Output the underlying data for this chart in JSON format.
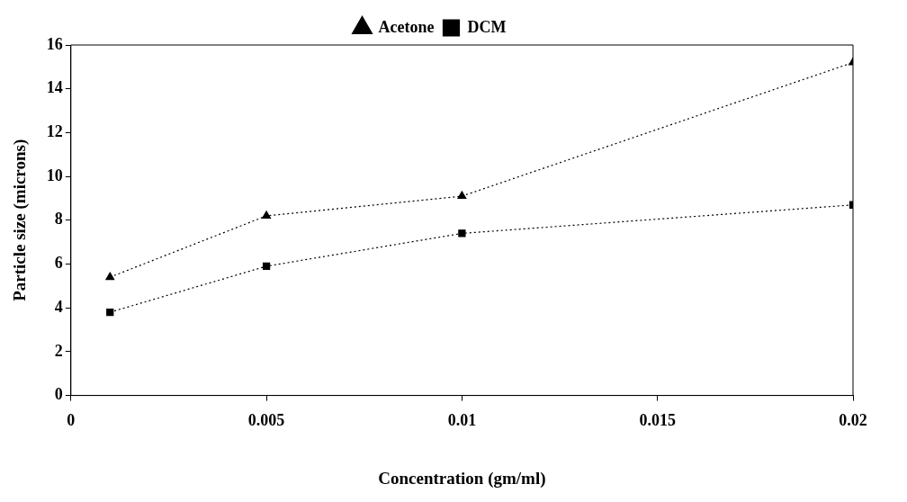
{
  "chart_data": {
    "type": "line",
    "xlabel": "Concentration (gm/ml)",
    "ylabel": "Particle size (microns)",
    "x": [
      0.001,
      0.005,
      0.01,
      0.02
    ],
    "series": [
      {
        "name": "Acetone",
        "color": "#000000",
        "marker": "triangle",
        "values": [
          5.4,
          8.2,
          9.1,
          15.2
        ]
      },
      {
        "name": "DCM",
        "color": "#000000",
        "marker": "square",
        "values": [
          3.8,
          5.9,
          7.4,
          8.7
        ]
      }
    ],
    "xlim": [
      0,
      0.02
    ],
    "xticks": [
      0,
      0.005,
      0.01,
      0.015,
      0.02
    ],
    "ylim": [
      0,
      16
    ],
    "yticks": [
      0,
      2,
      4,
      6,
      8,
      10,
      12,
      14,
      16
    ],
    "grid": false,
    "legend": "top",
    "line_style": "dotted"
  }
}
